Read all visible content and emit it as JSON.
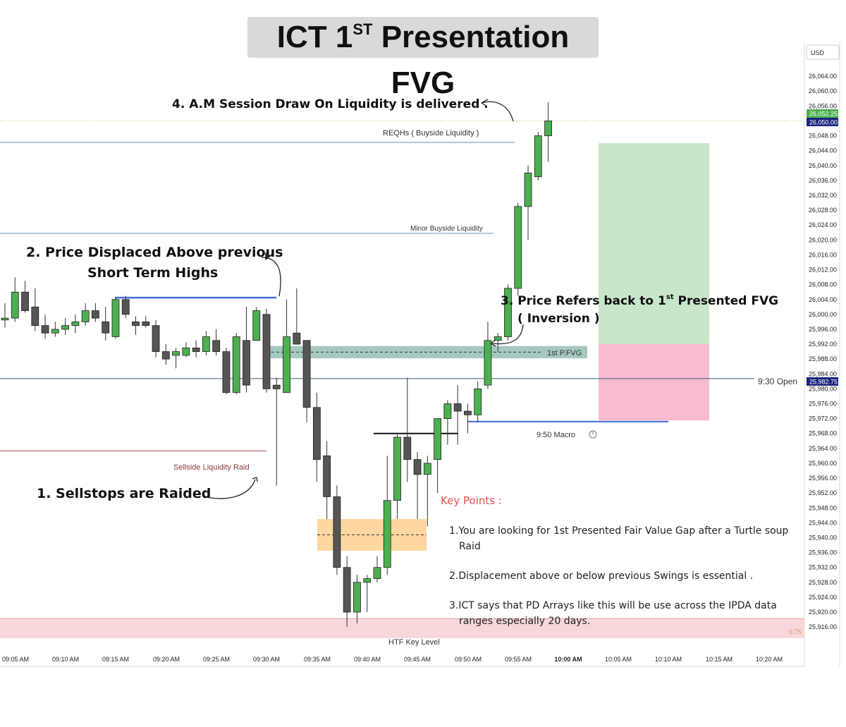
{
  "title": {
    "main": "ICT 1",
    "sup": "ST",
    "rest": " Presentation FVG"
  },
  "currency": "USD",
  "annotations": {
    "step4": "4. A.M Session Draw On Liquidity is delivered .",
    "reqh": "REQHs ( Buyside Liquidity )",
    "minor_bsl": "Minor Buyside Liquidity",
    "step2_line1": "2. Price Displaced Above previous",
    "step2_line2": "Short Term Highs",
    "step3_line1": "3. Price Refers back to 1",
    "step3_sup": "st",
    "step3_line1b": " Presented FVG",
    "step3_line2": "( Inversion )",
    "pfvg": "1st P.FVG",
    "open930": "9:30 Open",
    "macro950": "9:50 Macro",
    "ssl_raid": "Sellside Liquidity Raid",
    "step1": "1. Sellstops are Raided",
    "htf": "HTF Key Level",
    "fib": "0.75"
  },
  "key_points": {
    "title": "Key Points :",
    "p1a": "1.You are looking for 1st Presented Fair Value Gap after a Turtle soup",
    "p1b": "Raid",
    "p2": "2.Displacement above or below previous Swings is essential .",
    "p3a": "3.ICT says that PD Arrays like this will be use across the IPDA data",
    "p3b": "ranges especially 20 days."
  },
  "price_tags": {
    "last": "26,052.25",
    "current": "26,050.00",
    "open": "25,982.75"
  },
  "colors": {
    "bull": "#4caf50",
    "bear": "#555555",
    "tp": "#c8e6c9",
    "sl": "#f8bbd0",
    "fvg": "#6aa39a",
    "ob": "#ffcc88",
    "htf": "#f8d7da"
  },
  "chart_data": {
    "type": "candlestick",
    "title": "ICT 1ST Presentation FVG",
    "ylim": [
      25913,
      26068
    ],
    "y_ticks": [
      26064,
      26060,
      26056,
      26052,
      26048,
      26044,
      26040,
      26036,
      26032,
      26028,
      26024,
      26020,
      26016,
      26012,
      26008,
      26004,
      26000,
      25996,
      25992,
      25988,
      25984,
      25980,
      25976,
      25972,
      25968,
      25964,
      25960,
      25956,
      25952,
      25948,
      25944,
      25940,
      25936,
      25932,
      25928,
      25924,
      25920,
      25916
    ],
    "x_ticks": [
      "09:05 AM",
      "09:10 AM",
      "09:15 AM",
      "09:20 AM",
      "09:25 AM",
      "09:30 AM",
      "09:35 AM",
      "09:40 AM",
      "09:45 AM",
      "09:50 AM",
      "09:55 AM",
      "10:00 AM",
      "10:05 AM",
      "10:10 AM",
      "10:15 AM",
      "10:20 AM"
    ],
    "candles": [
      {
        "o": 25998.5,
        "h": 26003,
        "l": 25996.5,
        "c": 25999
      },
      {
        "o": 25999,
        "h": 26010,
        "l": 25998,
        "c": 26006
      },
      {
        "o": 26006,
        "h": 26009,
        "l": 26000.5,
        "c": 26001
      },
      {
        "o": 26002,
        "h": 26007,
        "l": 25995.5,
        "c": 25997
      },
      {
        "o": 25997,
        "h": 26000,
        "l": 25993.5,
        "c": 25995
      },
      {
        "o": 25995,
        "h": 25998,
        "l": 25994,
        "c": 25996
      },
      {
        "o": 25996,
        "h": 25999,
        "l": 25994.5,
        "c": 25997
      },
      {
        "o": 25997,
        "h": 26000,
        "l": 25995,
        "c": 25998
      },
      {
        "o": 25998,
        "h": 26003,
        "l": 25997,
        "c": 26001
      },
      {
        "o": 26001,
        "h": 26003,
        "l": 25998,
        "c": 25999
      },
      {
        "o": 25998,
        "h": 26002,
        "l": 25993,
        "c": 25995
      },
      {
        "o": 25994,
        "h": 26004.5,
        "l": 25993.5,
        "c": 26004
      },
      {
        "o": 26004,
        "h": 26005,
        "l": 25999,
        "c": 26000
      },
      {
        "o": 25998,
        "h": 25999.5,
        "l": 25994.5,
        "c": 25997
      },
      {
        "o": 25998,
        "h": 25999.5,
        "l": 25996.5,
        "c": 25997
      },
      {
        "o": 25997,
        "h": 25998.5,
        "l": 25988.5,
        "c": 25990
      },
      {
        "o": 25990,
        "h": 25992,
        "l": 25986.5,
        "c": 25988
      },
      {
        "o": 25989,
        "h": 25991,
        "l": 25985.5,
        "c": 25990
      },
      {
        "o": 25989,
        "h": 25992.5,
        "l": 25988.5,
        "c": 25991
      },
      {
        "o": 25991,
        "h": 25993,
        "l": 25988.5,
        "c": 25990
      },
      {
        "o": 25990,
        "h": 25995.5,
        "l": 25989,
        "c": 25994
      },
      {
        "o": 25993,
        "h": 25996,
        "l": 25989,
        "c": 25990
      },
      {
        "o": 25990,
        "h": 25991,
        "l": 25978.5,
        "c": 25979
      },
      {
        "o": 25979,
        "h": 25995,
        "l": 25978.5,
        "c": 25994
      },
      {
        "o": 25993,
        "h": 26002,
        "l": 25979,
        "c": 25981
      },
      {
        "o": 25993,
        "h": 26002,
        "l": 25993,
        "c": 26001
      },
      {
        "o": 26000,
        "h": 26001.5,
        "l": 25979,
        "c": 25980
      },
      {
        "o": 25981,
        "h": 25983,
        "l": 25954,
        "c": 25980
      },
      {
        "o": 25979,
        "h": 26004,
        "l": 25979,
        "c": 25994
      },
      {
        "o": 25995,
        "h": 26007,
        "l": 25992,
        "c": 25992
      },
      {
        "o": 25993,
        "h": 25993,
        "l": 25971,
        "c": 25975
      },
      {
        "o": 25975,
        "h": 25979,
        "l": 25955,
        "c": 25961
      },
      {
        "o": 25962,
        "h": 25966,
        "l": 25945,
        "c": 25951
      },
      {
        "o": 25951,
        "h": 25954,
        "l": 25930,
        "c": 25932
      },
      {
        "o": 25932,
        "h": 25935,
        "l": 25916,
        "c": 25920
      },
      {
        "o": 25920,
        "h": 25930,
        "l": 25917,
        "c": 25928
      },
      {
        "o": 25928,
        "h": 25930,
        "l": 25920,
        "c": 25929
      },
      {
        "o": 25929,
        "h": 25935,
        "l": 25928,
        "c": 25932
      },
      {
        "o": 25932,
        "h": 25962,
        "l": 25930,
        "c": 25950
      },
      {
        "o": 25950,
        "h": 25968,
        "l": 25945,
        "c": 25967
      },
      {
        "o": 25967,
        "h": 25983,
        "l": 25955,
        "c": 25961
      },
      {
        "o": 25961,
        "h": 25963,
        "l": 25945,
        "c": 25957
      },
      {
        "o": 25957,
        "h": 25962,
        "l": 25943,
        "c": 25960
      },
      {
        "o": 25961,
        "h": 25972,
        "l": 25952,
        "c": 25972
      },
      {
        "o": 25972,
        "h": 25977,
        "l": 25965,
        "c": 25976
      },
      {
        "o": 25976,
        "h": 25981,
        "l": 25965,
        "c": 25974
      },
      {
        "o": 25974,
        "h": 25976,
        "l": 25968,
        "c": 25973
      },
      {
        "o": 25973,
        "h": 25982,
        "l": 25971,
        "c": 25980
      },
      {
        "o": 25981,
        "h": 25998,
        "l": 25980,
        "c": 25993
      },
      {
        "o": 25993,
        "h": 25995,
        "l": 25990,
        "c": 25994
      },
      {
        "o": 25994,
        "h": 26008,
        "l": 25993,
        "c": 26007
      },
      {
        "o": 26007,
        "h": 26030,
        "l": 26005,
        "c": 26029
      },
      {
        "o": 26029,
        "h": 26040,
        "l": 26020,
        "c": 26038
      },
      {
        "o": 26037,
        "h": 26049,
        "l": 26036,
        "c": 26048
      },
      {
        "o": 26048,
        "h": 26057,
        "l": 26041,
        "c": 26052
      }
    ],
    "levels": [
      {
        "name": "REQHs ( Buyside Liquidity )",
        "y": 26046.2
      },
      {
        "name": "Minor Buyside Liquidity",
        "y": 26021.8
      },
      {
        "name": "9:30 Open",
        "y": 25982.75
      },
      {
        "name": "Sellside Liquidity Raid",
        "y": 25963.3
      },
      {
        "name": "9:50 Macro",
        "y": 25971.2
      }
    ],
    "zones": [
      {
        "name": "1st P.FVG",
        "top": 25991.5,
        "bottom": 25988.2
      },
      {
        "name": "Inversion FVG",
        "top": 25945,
        "bottom": 25936.5
      },
      {
        "name": "HTF Key Level",
        "top": 25918,
        "bottom": 25913
      },
      {
        "name": "Target",
        "top": 26046,
        "bottom": 25992
      },
      {
        "name": "Stop",
        "top": 25992,
        "bottom": 25971.5
      }
    ]
  }
}
